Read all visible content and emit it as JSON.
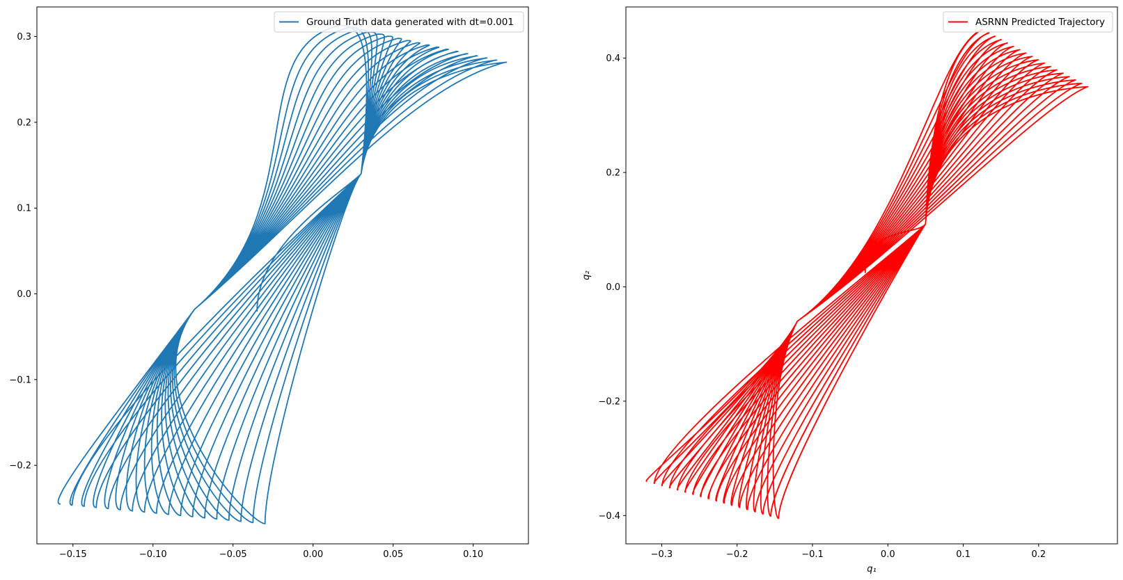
{
  "chart_data": [
    {
      "type": "line",
      "title": "",
      "xlabel": "",
      "ylabel": "",
      "xlim": [
        -0.1725,
        0.1345
      ],
      "ylim": [
        -0.2915,
        0.3345
      ],
      "xticks": [
        -0.15,
        -0.1,
        -0.05,
        0.0,
        0.05,
        0.1
      ],
      "xtick_labels": [
        "−0.15",
        "−0.10",
        "−0.05",
        "0.00",
        "0.05",
        "0.10"
      ],
      "yticks": [
        -0.2,
        -0.1,
        0.0,
        0.1,
        0.2,
        0.3
      ],
      "ytick_labels": [
        "−0.2",
        "−0.1",
        "0.0",
        "0.1",
        "0.2",
        "0.3"
      ],
      "grid": false,
      "legend_position": "upper right",
      "series": [
        {
          "name": "Ground Truth data generated with dt=0.001",
          "color": "#1f77b4",
          "kind": "precessing-loops",
          "start": [
            -0.035,
            -0.02
          ],
          "loop_count": 18,
          "first_loop": {
            "top": [
              0.016,
              0.313
            ],
            "right": [
              0.03,
              0.14
            ],
            "bottom": [
              -0.03,
              -0.268
            ],
            "left": [
              -0.035,
              0.06
            ]
          },
          "last_loop": {
            "top": [
              0.12,
              0.27
            ],
            "right": [
              0.12,
              0.27
            ],
            "bottom": [
              -0.158,
              -0.245
            ],
            "left": [
              -0.158,
              -0.245
            ]
          },
          "crossing_upper": [
            0.03,
            0.14
          ],
          "crossing_lower": [
            -0.074,
            -0.018
          ]
        }
      ]
    },
    {
      "type": "line",
      "title": "",
      "xlabel": "q₁",
      "ylabel": "q₂",
      "xlim": [
        -0.3475,
        0.3045
      ],
      "ylim": [
        -0.4495,
        0.4895
      ],
      "xticks": [
        -0.3,
        -0.2,
        -0.1,
        0.0,
        0.1,
        0.2
      ],
      "xtick_labels": [
        "−0.3",
        "−0.2",
        "−0.1",
        "0.0",
        "0.1",
        "0.2"
      ],
      "yticks": [
        -0.4,
        -0.2,
        0.0,
        0.2,
        0.4
      ],
      "ytick_labels": [
        "−0.4",
        "−0.2",
        "0.0",
        "0.2",
        "0.4"
      ],
      "grid": false,
      "legend_position": "upper right",
      "series": [
        {
          "name": "ASRNN Predicted Trajectory",
          "color": "#ff0000",
          "kind": "precessing-loops",
          "start": [
            -0.03,
            0.025
          ],
          "loop_count": 18,
          "first_loop": {
            "top": [
              0.125,
              0.45
            ],
            "right": [
              0.125,
              0.45
            ],
            "bottom": [
              -0.145,
              -0.405
            ],
            "left": [
              -0.145,
              -0.405
            ]
          },
          "last_loop": {
            "top": [
              0.265,
              0.35
            ],
            "right": [
              0.265,
              0.35
            ],
            "bottom": [
              -0.32,
              -0.34
            ],
            "left": [
              -0.32,
              -0.34
            ]
          },
          "crossing_upper": [
            0.05,
            0.11
          ],
          "crossing_lower": [
            -0.12,
            -0.06
          ]
        }
      ]
    }
  ]
}
